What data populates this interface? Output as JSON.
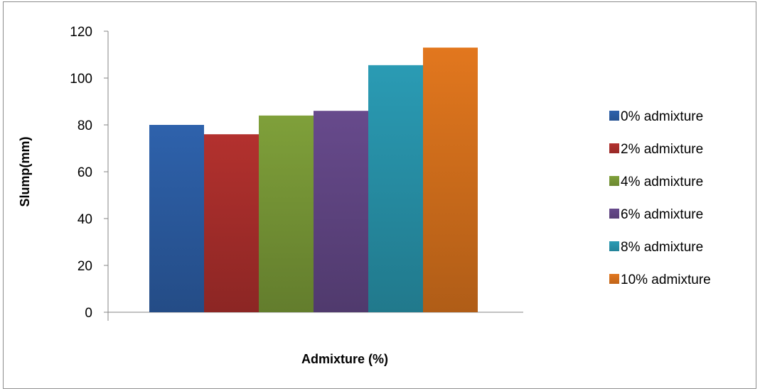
{
  "chart_data": {
    "type": "bar",
    "title": "",
    "xlabel": "Admixture (%)",
    "ylabel": "Slump(mm)",
    "ylim": [
      0,
      120
    ],
    "yticks": [
      0,
      20,
      40,
      60,
      80,
      100,
      120
    ],
    "grid": false,
    "legend_position": "right",
    "series": [
      {
        "name": "0% admixture",
        "value": 80,
        "color": "#2e62ac"
      },
      {
        "name": "2% admixture",
        "value": 76,
        "color": "#b3312e"
      },
      {
        "name": "4% admixture",
        "value": 84,
        "color": "#7fa03a"
      },
      {
        "name": "6% admixture",
        "value": 86,
        "color": "#674a8c"
      },
      {
        "name": "8% admixture",
        "value": 105.5,
        "color": "#2a9bb4"
      },
      {
        "name": "10% admixture",
        "value": 113,
        "color": "#e2771e"
      }
    ]
  }
}
